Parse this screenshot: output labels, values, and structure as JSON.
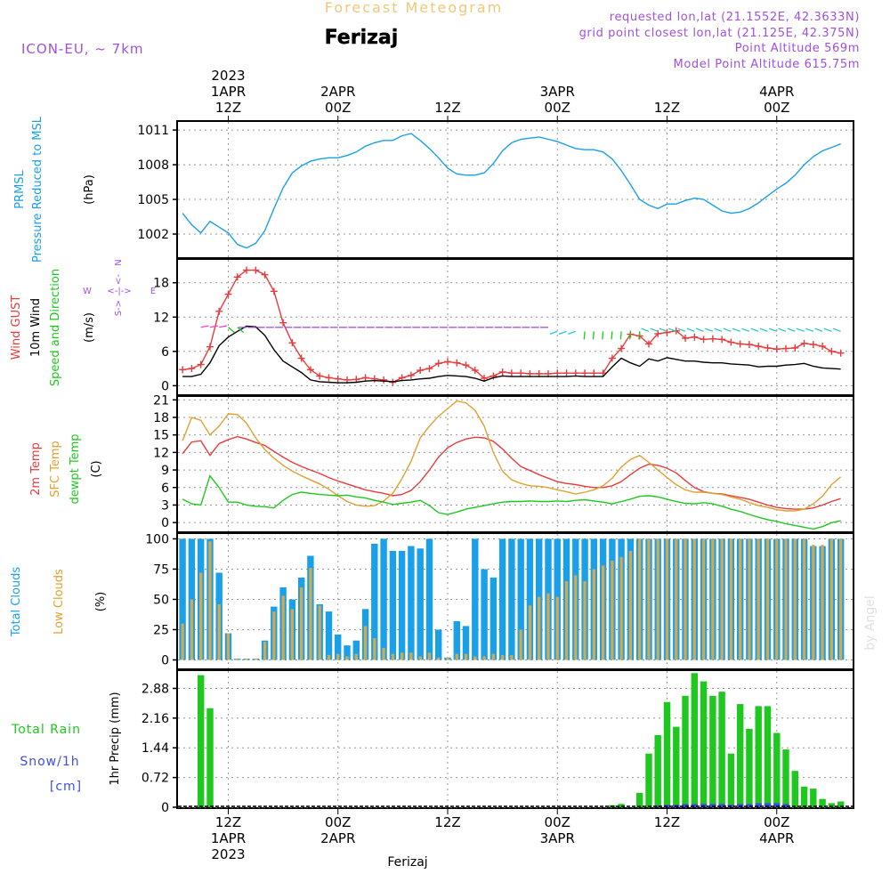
{
  "header": {
    "title": "Forecast Meteogram",
    "location": "Ferizaj",
    "model": "ICON-EU, ~ 7km",
    "requested": "requested lon,lat (21.1552E, 42.3633N)",
    "gridpoint": "grid point closest lon,lat (21.125E, 42.375N)",
    "point_altitude": "Point Altitude 569m",
    "model_altitude": "Model Point Altitude 615.75m"
  },
  "footer": {
    "location": "Ferizaj",
    "credit": "by Angel"
  },
  "colors": {
    "blue": "#1aa0e8",
    "red": "#e83c3c",
    "green": "#1ec81e",
    "orange": "#e0a030",
    "purple": "#a050e0",
    "black": "#000000",
    "grey": "#999999",
    "snow": "#3c50e0",
    "rose": "#ff3cc8",
    "cyan": "#1ec8c8"
  },
  "chart_data": [
    {
      "type": "line",
      "panel": "pressure",
      "title": "PRMSL Pressure Reduced to MSL",
      "ylabel": "(hPa)",
      "ylim": [
        1000,
        1011.7
      ],
      "yticks": [
        1002,
        1005,
        1008,
        1011
      ],
      "x_start_hour": 7,
      "x_step_hours": 1,
      "series": [
        {
          "name": "PRMSL",
          "color": "#1aa0e8",
          "values": [
            1003.8,
            1002.8,
            1002.1,
            1003.1,
            1002.6,
            1002.1,
            1001.1,
            1000.8,
            1001.2,
            1002.3,
            1004.2,
            1006.0,
            1007.3,
            1007.9,
            1008.3,
            1008.5,
            1008.6,
            1008.6,
            1008.8,
            1009.1,
            1009.6,
            1009.9,
            1010.1,
            1010.1,
            1010.5,
            1010.7,
            1010.1,
            1009.4,
            1008.6,
            1007.7,
            1007.2,
            1007.1,
            1007.1,
            1007.3,
            1008.1,
            1009.2,
            1009.9,
            1010.2,
            1010.3,
            1010.4,
            1010.2,
            1010.0,
            1009.7,
            1009.4,
            1009.3,
            1009.3,
            1009.1,
            1008.5,
            1007.5,
            1006.3,
            1005.0,
            1004.5,
            1004.2,
            1004.6,
            1004.6,
            1004.9,
            1005.1,
            1005.0,
            1004.5,
            1004.0,
            1003.8,
            1003.9,
            1004.2,
            1004.7,
            1005.3,
            1005.9,
            1006.4,
            1007.1,
            1008.0,
            1008.7,
            1009.2,
            1009.5,
            1009.8
          ]
        }
      ]
    },
    {
      "type": "line",
      "panel": "wind",
      "title": "Wind GUST / 10m Wind / Speed and Direction",
      "ylabel": "(m/s)",
      "ylim": [
        -1.5,
        22
      ],
      "yticks": [
        0,
        6,
        12,
        18
      ],
      "compass": [
        "N",
        "W",
        "E",
        "S"
      ],
      "x_start_hour": 7,
      "x_step_hours": 1,
      "series": [
        {
          "name": "Wind GUST",
          "color": "#e83c3c",
          "values": [
            2.8,
            3.0,
            3.7,
            6.8,
            13.0,
            16.0,
            19.0,
            20.2,
            20.2,
            19.4,
            16.5,
            11.0,
            7.5,
            4.8,
            2.8,
            1.7,
            1.4,
            1.2,
            1.0,
            1.1,
            1.4,
            1.2,
            1.0,
            0.6,
            1.4,
            1.8,
            2.7,
            3.0,
            3.9,
            4.2,
            4.0,
            3.6,
            2.7,
            1.3,
            1.7,
            2.4,
            2.2,
            2.2,
            2.1,
            2.1,
            2.1,
            2.2,
            2.2,
            2.2,
            2.2,
            2.2,
            2.2,
            4.8,
            6.5,
            9.0,
            8.7,
            7.3,
            9.1,
            9.3,
            9.6,
            8.3,
            8.5,
            8.1,
            8.2,
            8.1,
            7.6,
            7.3,
            7.2,
            6.9,
            6.6,
            6.4,
            6.5,
            6.6,
            7.4,
            7.2,
            6.9,
            6.0,
            5.7
          ]
        },
        {
          "name": "10m Wind",
          "color": "#000000",
          "values": [
            1.6,
            1.6,
            2.0,
            4.0,
            7.0,
            8.5,
            9.5,
            10.4,
            10.3,
            8.8,
            6.3,
            4.3,
            3.3,
            2.3,
            1.0,
            0.7,
            0.6,
            0.5,
            0.5,
            0.6,
            0.8,
            0.9,
            0.8,
            0.7,
            0.9,
            1.0,
            1.2,
            1.3,
            1.6,
            1.8,
            1.7,
            1.6,
            1.3,
            0.8,
            1.4,
            1.7,
            1.6,
            1.6,
            1.6,
            1.6,
            1.6,
            1.6,
            1.6,
            1.7,
            1.6,
            1.6,
            1.6,
            3.3,
            4.8,
            4.0,
            3.4,
            4.7,
            4.3,
            4.9,
            4.6,
            4.3,
            4.3,
            4.1,
            4.0,
            4.0,
            3.8,
            3.7,
            3.6,
            3.3,
            3.4,
            3.4,
            3.6,
            3.7,
            3.9,
            3.4,
            3.1,
            3.0,
            2.9
          ]
        }
      ]
    },
    {
      "type": "line",
      "panel": "temperature",
      "title": "2m Temp / SFC Temp / dewpt Temp",
      "ylabel": "(C)",
      "ylim": [
        -1.5,
        21.5
      ],
      "yticks": [
        0,
        3,
        6,
        9,
        12,
        15,
        18,
        21
      ],
      "x_start_hour": 7,
      "x_step_hours": 1,
      "series": [
        {
          "name": "2m Temp",
          "color": "#e83c3c",
          "values": [
            11.8,
            13.8,
            14.0,
            11.5,
            13.5,
            14.2,
            14.7,
            14.3,
            13.7,
            13.2,
            12.2,
            11.2,
            10.3,
            9.6,
            9.0,
            8.4,
            7.7,
            7.1,
            6.6,
            6.1,
            5.6,
            5.3,
            5.0,
            4.6,
            4.8,
            5.5,
            7.0,
            9.0,
            11.2,
            12.8,
            13.7,
            14.3,
            14.6,
            14.5,
            13.9,
            12.6,
            11.0,
            9.6,
            8.9,
            8.2,
            7.6,
            7.0,
            6.7,
            6.5,
            6.2,
            6.0,
            6.0,
            6.3,
            7.0,
            8.2,
            9.3,
            10.0,
            9.8,
            9.3,
            8.5,
            7.2,
            6.0,
            5.3,
            5.0,
            4.9,
            4.6,
            4.3,
            4.0,
            3.5,
            3.0,
            2.6,
            2.4,
            2.3,
            2.3,
            2.5,
            3.0,
            3.6,
            4.1
          ]
        },
        {
          "name": "SFC Temp",
          "color": "#e0a030",
          "values": [
            14.0,
            18.0,
            17.5,
            15.0,
            16.5,
            18.6,
            18.5,
            17.0,
            14.5,
            12.5,
            11.0,
            9.8,
            8.8,
            8.0,
            7.3,
            6.6,
            5.7,
            4.6,
            3.6,
            3.0,
            2.8,
            2.9,
            3.7,
            5.0,
            7.5,
            10.5,
            14.5,
            16.5,
            18.2,
            19.5,
            20.8,
            20.5,
            19.2,
            16.5,
            12.0,
            8.8,
            7.3,
            6.7,
            6.3,
            6.2,
            6.0,
            5.6,
            5.3,
            4.9,
            5.2,
            5.6,
            6.3,
            7.6,
            9.5,
            10.8,
            11.5,
            10.3,
            9.0,
            7.7,
            6.5,
            5.6,
            5.2,
            5.2,
            5.0,
            4.8,
            4.4,
            4.0,
            3.4,
            2.9,
            2.6,
            2.2,
            2.0,
            2.0,
            2.3,
            3.2,
            4.5,
            6.5,
            7.8
          ]
        },
        {
          "name": "dewpt Temp",
          "color": "#1ec81e",
          "values": [
            4.0,
            3.2,
            3.0,
            8.0,
            6.0,
            3.5,
            3.5,
            3.0,
            2.8,
            2.7,
            2.5,
            3.8,
            4.8,
            5.2,
            5.0,
            4.8,
            4.7,
            4.6,
            4.7,
            4.4,
            4.2,
            3.8,
            3.5,
            3.1,
            3.3,
            3.5,
            3.8,
            2.9,
            1.7,
            1.4,
            1.8,
            2.3,
            2.6,
            2.9,
            3.2,
            3.5,
            3.6,
            3.6,
            3.7,
            3.6,
            3.6,
            3.7,
            3.6,
            3.8,
            3.9,
            3.7,
            3.5,
            3.2,
            3.6,
            4.0,
            4.5,
            4.6,
            4.4,
            4.0,
            3.6,
            3.3,
            3.2,
            3.4,
            3.2,
            2.8,
            2.3,
            1.9,
            1.4,
            0.9,
            0.5,
            0.2,
            -0.2,
            -0.5,
            -0.8,
            -1.1,
            -0.7,
            0.0,
            0.3
          ]
        }
      ]
    },
    {
      "type": "bar",
      "panel": "clouds",
      "title": "Total Clouds / Low Clouds",
      "ylabel": "(%)",
      "ylim": [
        -7,
        104
      ],
      "yticks": [
        0,
        25,
        50,
        75,
        100
      ],
      "x_start_hour": 7,
      "x_step_hours": 1,
      "series": [
        {
          "name": "Total Clouds",
          "color": "#1aa0e8",
          "values": [
            100,
            100,
            100,
            100,
            72,
            22,
            1,
            1,
            1,
            16,
            44,
            60,
            50,
            68,
            86,
            46,
            40,
            21,
            12,
            16,
            42,
            96,
            100,
            90,
            90,
            94,
            92,
            100,
            25,
            2,
            32,
            28,
            100,
            75,
            68,
            100,
            100,
            100,
            100,
            100,
            100,
            100,
            100,
            100,
            100,
            100,
            100,
            100,
            100,
            100,
            100,
            100,
            100,
            100,
            100,
            100,
            100,
            100,
            100,
            100,
            100,
            100,
            100,
            100,
            100,
            100,
            100,
            100,
            100,
            94,
            94,
            100,
            100
          ]
        },
        {
          "name": "Low Clouds",
          "color": "#d4a84c",
          "values": [
            30,
            50,
            72,
            98,
            46,
            22,
            1,
            1,
            1,
            15,
            40,
            53,
            42,
            60,
            76,
            45,
            4,
            5,
            3,
            5,
            28,
            18,
            10,
            5,
            6,
            6,
            3,
            6,
            2,
            2,
            5,
            5,
            3,
            3,
            5,
            4,
            4,
            25,
            45,
            52,
            55,
            52,
            65,
            70,
            65,
            75,
            78,
            82,
            85,
            90,
            100,
            100,
            100,
            100,
            100,
            100,
            100,
            100,
            100,
            100,
            100,
            100,
            100,
            100,
            100,
            100,
            100,
            100,
            100,
            95,
            95,
            100,
            100
          ]
        }
      ]
    },
    {
      "type": "bar",
      "panel": "precip",
      "title": "Total Rain / Snow/1h [cm]",
      "ylabel": "1hr Precip (mm)",
      "ylim": [
        0,
        3.3
      ],
      "yticks": [
        0,
        0.72,
        1.44,
        2.16,
        2.88
      ],
      "x_start_hour": 7,
      "x_step_hours": 1,
      "series": [
        {
          "name": "Total Rain",
          "color": "#1ec81e",
          "values": [
            0,
            0,
            3.2,
            2.4,
            0,
            0,
            0,
            0,
            0,
            0,
            0,
            0,
            0,
            0,
            0,
            0,
            0,
            0,
            0,
            0,
            0,
            0,
            0,
            0,
            0,
            0,
            0,
            0,
            0,
            0,
            0,
            0,
            0,
            0,
            0,
            0,
            0,
            0,
            0,
            0,
            0,
            0,
            0,
            0,
            0,
            0,
            0,
            0.05,
            0.08,
            0,
            0.35,
            1.3,
            1.75,
            2.55,
            1.95,
            2.7,
            3.25,
            3.05,
            2.7,
            2.8,
            1.3,
            2.5,
            1.9,
            2.45,
            2.45,
            1.8,
            1.4,
            0.88,
            0.5,
            0.45,
            0.2,
            0.1,
            0.14
          ]
        },
        {
          "name": "Snow/1h",
          "color": "#3c50e0",
          "values": [
            0,
            0,
            0,
            0,
            0,
            0,
            0,
            0,
            0,
            0,
            0,
            0,
            0,
            0,
            0,
            0,
            0,
            0,
            0,
            0,
            0,
            0,
            0,
            0,
            0,
            0,
            0,
            0,
            0,
            0,
            0,
            0,
            0,
            0,
            0,
            0,
            0,
            0,
            0,
            0,
            0,
            0,
            0,
            0,
            0,
            0,
            0,
            0,
            0,
            0,
            0,
            0,
            0.04,
            0.06,
            0.06,
            0.08,
            0.08,
            0.08,
            0.08,
            0.08,
            0.06,
            0.08,
            0.08,
            0.1,
            0.1,
            0.1,
            0.08,
            0,
            0,
            0,
            0,
            0,
            0
          ]
        }
      ]
    }
  ],
  "time_axis": {
    "top": [
      {
        "hour": 12,
        "lines": [
          "2023",
          "1APR",
          "12Z"
        ]
      },
      {
        "hour": 24,
        "lines": [
          "2APR",
          "00Z"
        ]
      },
      {
        "hour": 36,
        "lines": [
          "12Z"
        ]
      },
      {
        "hour": 48,
        "lines": [
          "3APR",
          "00Z"
        ]
      },
      {
        "hour": 60,
        "lines": [
          "12Z"
        ]
      },
      {
        "hour": 72,
        "lines": [
          "4APR",
          "00Z"
        ]
      }
    ],
    "bottom": [
      {
        "hour": 12,
        "lines": [
          "12Z",
          "1APR",
          "2023"
        ]
      },
      {
        "hour": 24,
        "lines": [
          "00Z",
          "2APR"
        ]
      },
      {
        "hour": 36,
        "lines": [
          "12Z"
        ]
      },
      {
        "hour": 48,
        "lines": [
          "00Z",
          "3APR"
        ]
      },
      {
        "hour": 60,
        "lines": [
          "12Z"
        ]
      },
      {
        "hour": 72,
        "lines": [
          "00Z",
          "4APR"
        ]
      }
    ]
  },
  "wind_barbs": [
    {
      "from": 9,
      "to": 11,
      "color": "#ff3cc8",
      "angle": -12
    },
    {
      "from": 12,
      "to": 13,
      "color": "#1ec81e",
      "angle": 40
    },
    {
      "from": 14,
      "to": 47,
      "color": "#a050e0",
      "angle": 180
    },
    {
      "from": 48,
      "to": 50,
      "color": "#1ec8c8",
      "angle": 160
    },
    {
      "from": 51,
      "to": 57,
      "color": "#1ec81e",
      "angle": 95
    },
    {
      "from": 58,
      "to": 79,
      "color": "#1ec8c8",
      "angle": 200
    }
  ]
}
